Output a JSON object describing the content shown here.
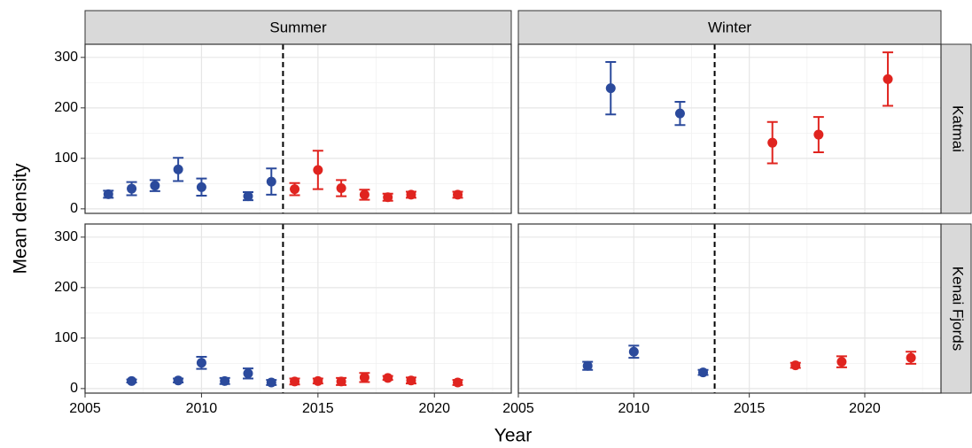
{
  "columns": [
    "Summer",
    "Winter"
  ],
  "rows": [
    "Katmai",
    "Kenai Fjords"
  ],
  "x_label": "Year",
  "y_label": "Mean density",
  "chart_data": [
    {
      "type": "scatter",
      "xlim": [
        2005,
        2023.3
      ],
      "ylim": [
        -9,
        326
      ],
      "xticks": [
        2005,
        2010,
        2015,
        2020
      ],
      "yticks": [
        0,
        100,
        200,
        300
      ],
      "grid": true,
      "minor_grid": true,
      "reference_line": 2013.5,
      "series": [
        {
          "color": "#2b4a9c",
          "x": [
            2006,
            2007,
            2008,
            2009,
            2010,
            2012,
            2013
          ],
          "values": [
            29,
            40,
            46,
            78,
            43,
            25,
            54
          ],
          "errors": [
            7,
            13,
            11,
            23,
            17,
            8,
            26
          ]
        },
        {
          "color": "#e0241f",
          "x": [
            2014,
            2015,
            2016,
            2017,
            2018,
            2019,
            2021
          ],
          "values": [
            39,
            77,
            41,
            28,
            23,
            28,
            28
          ],
          "errors": [
            12,
            38,
            16,
            10,
            7,
            6,
            6
          ]
        }
      ]
    },
    {
      "type": "scatter",
      "xlim": [
        2005,
        2023.3
      ],
      "ylim": [
        -9,
        326
      ],
      "xticks": [
        2005,
        2010,
        2015,
        2020
      ],
      "yticks": [
        0,
        100,
        200,
        300
      ],
      "grid": true,
      "minor_grid": true,
      "reference_line": 2013.5,
      "series": [
        {
          "color": "#2b4a9c",
          "x": [
            2009,
            2012
          ],
          "values": [
            239,
            189
          ],
          "errors": [
            52,
            23
          ]
        },
        {
          "color": "#e0241f",
          "x": [
            2016,
            2018,
            2021
          ],
          "values": [
            131,
            147,
            257
          ],
          "errors": [
            41,
            35,
            53
          ]
        }
      ]
    },
    {
      "type": "scatter",
      "xlim": [
        2005,
        2023.3
      ],
      "ylim": [
        -9,
        326
      ],
      "xticks": [
        2005,
        2010,
        2015,
        2020
      ],
      "yticks": [
        0,
        100,
        200,
        300
      ],
      "grid": true,
      "minor_grid": true,
      "reference_line": 2013.5,
      "series": [
        {
          "color": "#2b4a9c",
          "x": [
            2007,
            2009,
            2010,
            2011,
            2012,
            2013
          ],
          "values": [
            15,
            16,
            51,
            15,
            30,
            12
          ],
          "errors": [
            3,
            4,
            12,
            6,
            10,
            5
          ]
        },
        {
          "color": "#e0241f",
          "x": [
            2014,
            2015,
            2016,
            2017,
            2018,
            2019,
            2021
          ],
          "values": [
            14,
            15,
            14,
            22,
            21,
            16,
            12
          ],
          "errors": [
            6,
            5,
            7,
            9,
            4,
            6,
            5
          ]
        }
      ]
    },
    {
      "type": "scatter",
      "xlim": [
        2005,
        2023.3
      ],
      "ylim": [
        -9,
        326
      ],
      "xticks": [
        2005,
        2010,
        2015,
        2020
      ],
      "yticks": [
        0,
        100,
        200,
        300
      ],
      "grid": true,
      "minor_grid": true,
      "reference_line": 2013.5,
      "series": [
        {
          "color": "#2b4a9c",
          "x": [
            2008,
            2010,
            2013
          ],
          "values": [
            45,
            73,
            32
          ],
          "errors": [
            8,
            12,
            5
          ]
        },
        {
          "color": "#e0241f",
          "x": [
            2017,
            2019,
            2022
          ],
          "values": [
            46,
            53,
            61
          ],
          "errors": [
            5,
            11,
            12
          ]
        }
      ]
    }
  ]
}
